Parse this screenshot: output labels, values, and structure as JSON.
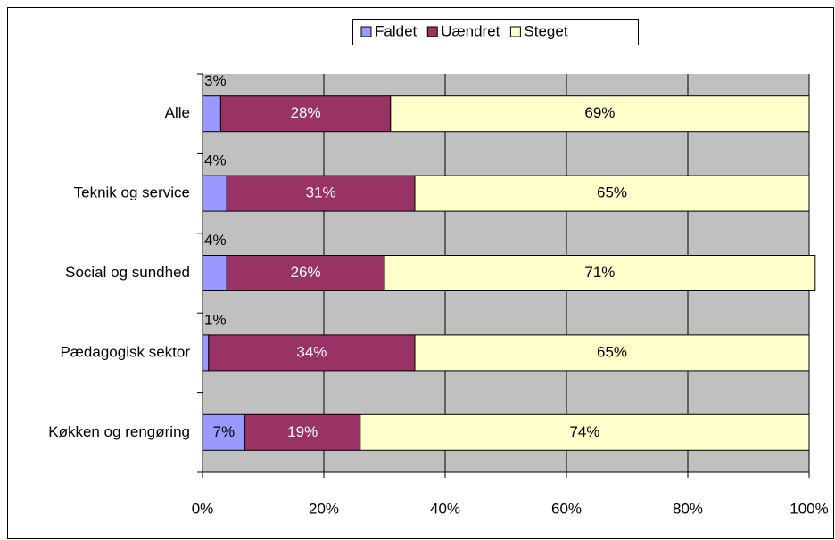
{
  "chart_data": {
    "type": "stacked-bar-horizontal",
    "categories": [
      "Alle",
      "Teknik og service",
      "Social og sundhed",
      "Pædagogisk sektor",
      "Køkken og rengøring"
    ],
    "series": [
      {
        "name": "Faldet",
        "color": "#9999FF",
        "values": [
          3,
          4,
          4,
          1,
          7
        ],
        "value_labels": [
          "3%",
          "4%",
          "4%",
          "1%",
          "7%"
        ]
      },
      {
        "name": "Uændret",
        "color": "#993366",
        "values": [
          28,
          31,
          26,
          34,
          19
        ],
        "value_labels": [
          "28%",
          "31%",
          "26%",
          "34%",
          "19%"
        ]
      },
      {
        "name": "Steget",
        "color": "#FFFFCC",
        "values": [
          69,
          65,
          71,
          65,
          74
        ],
        "value_labels": [
          "69%",
          "65%",
          "71%",
          "65%",
          "74%"
        ]
      }
    ],
    "xlim": [
      0,
      100
    ],
    "xticks": [
      {
        "value": 0,
        "label": "0%"
      },
      {
        "value": 20,
        "label": "20%"
      },
      {
        "value": 40,
        "label": "40%"
      },
      {
        "value": 60,
        "label": "60%"
      },
      {
        "value": 80,
        "label": "80%"
      },
      {
        "value": 100,
        "label": "100%"
      }
    ],
    "grid": true,
    "legend": "top"
  }
}
